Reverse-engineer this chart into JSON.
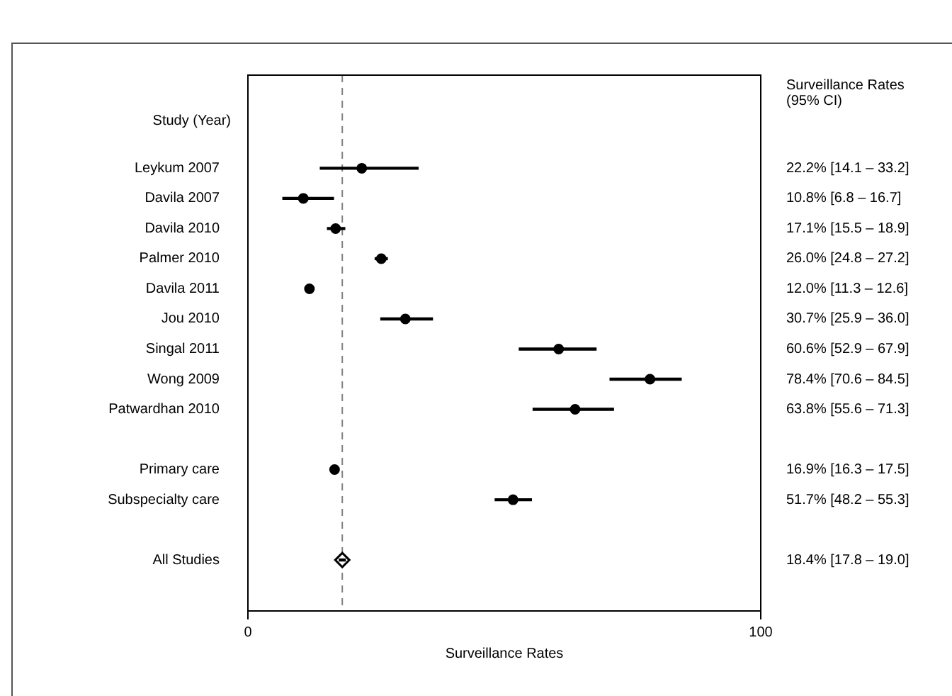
{
  "chart_data": {
    "type": "bar",
    "orientation": "horizontal",
    "xlabel": "Surveillance Rates",
    "categories": [
      "Leykum 2007",
      "Davila 2007",
      "Davila 2010",
      "Palmer 2010",
      "Davila 2011",
      "Jou 2010",
      "Singal 2011",
      "Wong 2009",
      "Patwardhan 2010",
      null,
      "Primary care",
      "Subspecialty care",
      null,
      "All Studies"
    ],
    "series": [
      {
        "color": "#000000",
        "base": [
          14.1,
          6.8,
          15.5,
          24.8,
          null,
          25.9,
          52.9,
          70.6,
          55.6,
          null,
          null,
          48.2,
          null,
          17.8
        ],
        "values": [
          19.1,
          9.9,
          3.4,
          2.4,
          null,
          10.1,
          15.0,
          13.9,
          15.7,
          null,
          null,
          7.1,
          null,
          1.2
        ]
      },
      {
        "type": "scatter",
        "color": "#000000",
        "marker": "circle",
        "x": [
          "Leykum 2007",
          "Davila 2007",
          "Davila 2010",
          "Palmer 2010",
          "Davila 2011",
          "Jou 2010",
          "Singal 2011",
          "Wong 2009",
          "Patwardhan 2010",
          "Primary care",
          "Subspecialty care"
        ],
        "values": [
          22.2,
          10.8,
          17.1,
          26.0,
          12.0,
          30.7,
          60.6,
          78.4,
          63.8,
          16.9,
          51.7
        ]
      },
      {
        "type": "scatter",
        "color": "#000000",
        "marker": "diamond",
        "x": [
          "All Studies"
        ],
        "values": [
          18.4
        ]
      }
    ],
    "xlim": [
      0,
      100
    ],
    "xticks": [
      0,
      100
    ],
    "ref_lines": [
      {
        "axis": "x",
        "value": 18.4,
        "color": "#808080",
        "line_style": "dashed"
      }
    ],
    "annotations": [
      "Study (Year)",
      "Surveillance Rates (95% CI)",
      "22.2% [14.1 – 33.2]",
      "10.8% [6.8 – 16.7]",
      "17.1% [15.5 – 18.9]",
      "26.0% [24.8 – 27.2]",
      "12.0% [11.3 – 12.6]",
      "30.7% [25.9 – 36.0]",
      "60.6% [52.9 – 67.9]",
      "78.4% [70.6 – 84.5]",
      "63.8% [55.6 – 71.3]",
      "16.9% [16.3 – 17.5]",
      "51.7% [48.2 – 55.3]",
      "18.4% [17.8 – 19.0]"
    ],
    "legend": false
  }
}
